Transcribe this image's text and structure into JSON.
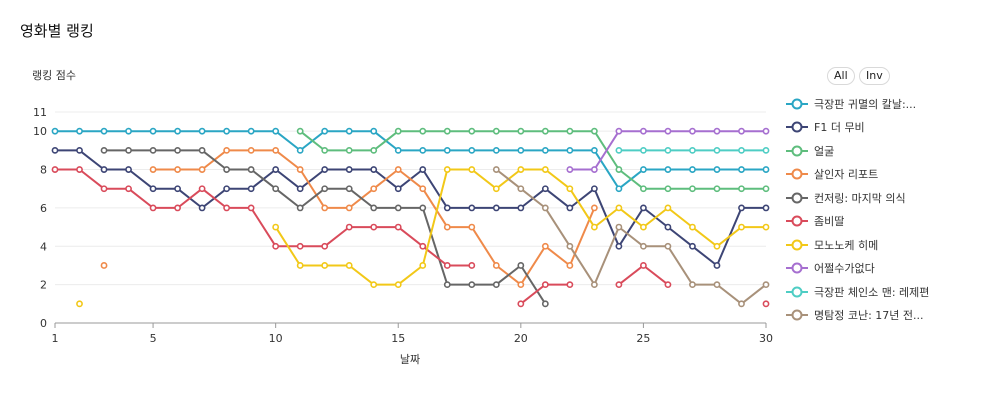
{
  "page": {
    "title": "영화별 랭킹"
  },
  "controls": {
    "all_label": "All",
    "inv_label": "Inv"
  },
  "chart_data": {
    "type": "line",
    "title": "",
    "ylabel": "랭킹 점수",
    "xlabel": "날짜",
    "xlim": [
      1,
      30
    ],
    "ylim": [
      0,
      11
    ],
    "x_ticks": [
      1,
      5,
      10,
      15,
      20,
      25,
      30
    ],
    "y_ticks": [
      0,
      2,
      4,
      6,
      8,
      10,
      11
    ],
    "grid": true,
    "legend_position": "right",
    "x": [
      1,
      2,
      3,
      4,
      5,
      6,
      7,
      8,
      9,
      10,
      11,
      12,
      13,
      14,
      15,
      16,
      17,
      18,
      19,
      20,
      21,
      22,
      23,
      24,
      25,
      26,
      27,
      28,
      29,
      30
    ],
    "series": [
      {
        "name": "극장판 귀멸의 칼날:...",
        "color": "#2aa6c4",
        "values": [
          10,
          10,
          10,
          10,
          10,
          10,
          10,
          10,
          10,
          10,
          9,
          10,
          10,
          10,
          9,
          9,
          9,
          9,
          9,
          9,
          9,
          9,
          9,
          7,
          8,
          8,
          8,
          8,
          8,
          8
        ]
      },
      {
        "name": "F1 더 무비",
        "color": "#3d4575",
        "values": [
          9,
          9,
          8,
          8,
          7,
          7,
          6,
          7,
          7,
          8,
          7,
          8,
          8,
          8,
          7,
          8,
          6,
          6,
          6,
          6,
          7,
          6,
          7,
          4,
          6,
          5,
          4,
          3,
          6,
          6
        ]
      },
      {
        "name": "얼굴",
        "color": "#5ebd7d",
        "values": [
          null,
          null,
          null,
          null,
          null,
          null,
          null,
          null,
          null,
          null,
          10,
          9,
          9,
          9,
          10,
          10,
          10,
          10,
          10,
          10,
          10,
          10,
          10,
          8,
          7,
          7,
          7,
          7,
          7,
          7
        ]
      },
      {
        "name": "살인자 리포트",
        "color": "#ef8a4a",
        "values": [
          null,
          null,
          3,
          null,
          8,
          8,
          8,
          9,
          9,
          9,
          8,
          6,
          6,
          7,
          8,
          7,
          5,
          5,
          3,
          2,
          4,
          3,
          6,
          null,
          null,
          null,
          null,
          null,
          null,
          null
        ]
      },
      {
        "name": "컨저링: 마지막 의식",
        "color": "#666666",
        "values": [
          null,
          null,
          9,
          9,
          9,
          9,
          9,
          8,
          8,
          7,
          6,
          7,
          7,
          6,
          6,
          6,
          2,
          2,
          2,
          3,
          1,
          null,
          null,
          null,
          null,
          null,
          null,
          null,
          null,
          null
        ]
      },
      {
        "name": "좀비딸",
        "color": "#d94b5b",
        "values": [
          8,
          8,
          7,
          7,
          6,
          6,
          7,
          6,
          6,
          4,
          4,
          4,
          5,
          5,
          5,
          4,
          3,
          3,
          null,
          1,
          2,
          2,
          null,
          2,
          3,
          2,
          null,
          null,
          null,
          1
        ]
      },
      {
        "name": "모노노케 히메",
        "color": "#f2c818",
        "values": [
          null,
          1,
          null,
          null,
          null,
          null,
          null,
          null,
          null,
          5,
          3,
          3,
          3,
          2,
          2,
          3,
          8,
          8,
          7,
          8,
          8,
          7,
          5,
          6,
          5,
          6,
          5,
          4,
          5,
          5
        ]
      },
      {
        "name": "어쩔수가없다",
        "color": "#a66fd0",
        "values": [
          null,
          null,
          null,
          null,
          null,
          null,
          null,
          null,
          null,
          null,
          null,
          null,
          null,
          null,
          null,
          null,
          null,
          null,
          null,
          null,
          null,
          8,
          8,
          10,
          10,
          10,
          10,
          10,
          10,
          10
        ]
      },
      {
        "name": "극장판 체인소 맨: 레제편",
        "color": "#4ecdc4",
        "values": [
          null,
          null,
          null,
          null,
          null,
          null,
          null,
          null,
          null,
          null,
          null,
          null,
          null,
          null,
          null,
          null,
          null,
          null,
          null,
          null,
          null,
          null,
          null,
          9,
          9,
          9,
          9,
          9,
          9,
          9
        ]
      },
      {
        "name": "명탐정 코난: 17년 전...",
        "color": "#a8917a",
        "values": [
          null,
          null,
          null,
          null,
          null,
          null,
          null,
          null,
          null,
          null,
          null,
          null,
          null,
          null,
          null,
          null,
          null,
          null,
          8,
          7,
          6,
          4,
          2,
          5,
          4,
          4,
          2,
          2,
          1,
          2
        ]
      }
    ]
  }
}
